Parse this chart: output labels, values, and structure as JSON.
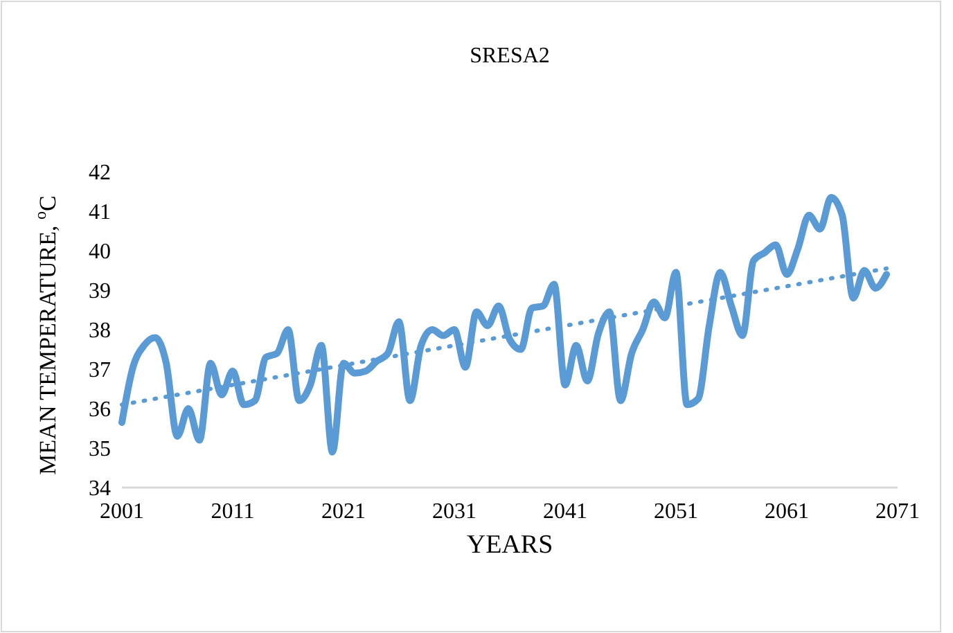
{
  "chart_data": {
    "type": "line",
    "title": "SRESA2",
    "xlabel": "YEARS",
    "ylabel": "MEAN TEMPERATURE, $^{o}$C",
    "xlim": [
      2001,
      2071
    ],
    "xticks": [
      2001,
      2011,
      2021,
      2031,
      2041,
      2051,
      2061,
      2071
    ],
    "ylim": [
      34,
      42
    ],
    "yticks": [
      34,
      35,
      36,
      37,
      38,
      39,
      40,
      41,
      42
    ],
    "grid": false,
    "series": [
      {
        "color": "#5b9bd5",
        "line_style": "solid",
        "x": [
          2001,
          2002,
          2003,
          2004,
          2005,
          2006,
          2007,
          2008,
          2009,
          2010,
          2011,
          2012,
          2013,
          2014,
          2015,
          2016,
          2017,
          2018,
          2019,
          2020,
          2021,
          2022,
          2023,
          2024,
          2025,
          2026,
          2027,
          2028,
          2029,
          2030,
          2031,
          2032,
          2033,
          2034,
          2035,
          2036,
          2037,
          2038,
          2039,
          2040,
          2041,
          2042,
          2043,
          2044,
          2045,
          2046,
          2047,
          2048,
          2049,
          2050,
          2051,
          2052,
          2053,
          2054,
          2055,
          2056,
          2057,
          2058,
          2059,
          2060,
          2061,
          2062,
          2063,
          2064,
          2065,
          2066,
          2067,
          2068,
          2069,
          2070
        ],
        "values": [
          35.65,
          37.05,
          37.6,
          37.8,
          37.15,
          35.3,
          36.0,
          35.2,
          37.15,
          36.35,
          36.95,
          36.1,
          36.2,
          37.3,
          37.4,
          38.0,
          36.2,
          36.6,
          37.6,
          34.9,
          37.15,
          36.9,
          36.95,
          37.2,
          37.4,
          38.2,
          36.2,
          37.6,
          38.0,
          37.85,
          38.0,
          37.05,
          38.45,
          38.1,
          38.6,
          37.75,
          37.5,
          38.55,
          38.6,
          39.15,
          36.6,
          37.6,
          36.7,
          37.9,
          38.45,
          36.2,
          37.4,
          38.0,
          38.7,
          38.3,
          39.45,
          36.1,
          36.25,
          38.1,
          39.45,
          38.6,
          37.85,
          39.75,
          39.95,
          40.15,
          39.4,
          40.05,
          40.9,
          40.55,
          41.35,
          40.9,
          38.8,
          39.5,
          39.05,
          39.4
        ]
      },
      {
        "color": "#5b9bd5",
        "line_style": "dotted",
        "x": [
          2001,
          2070
        ],
        "values": [
          36.1,
          39.55
        ]
      }
    ]
  }
}
